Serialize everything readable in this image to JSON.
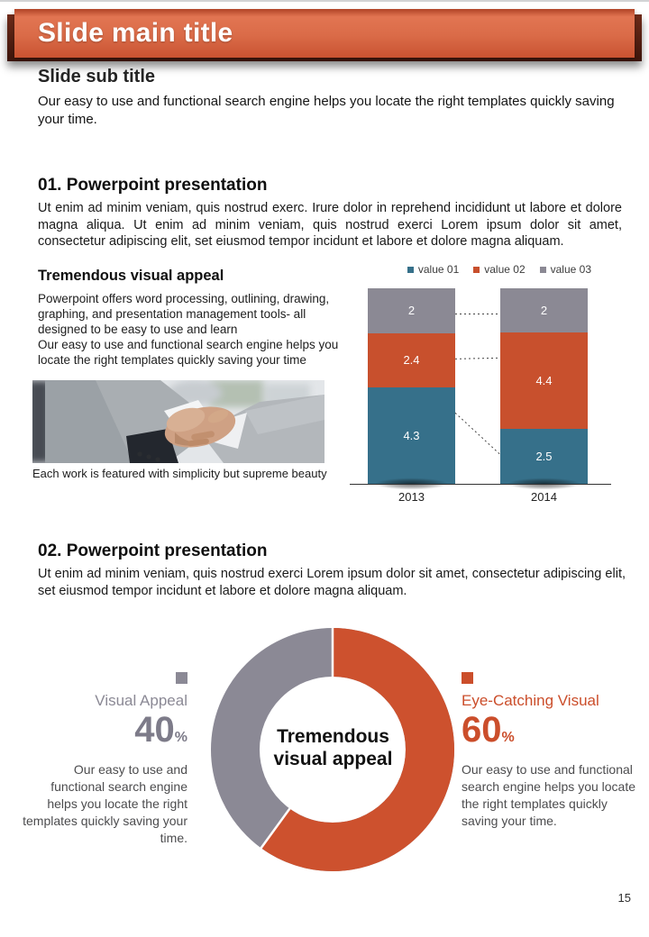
{
  "colors": {
    "banner_orange": "#D4603D",
    "accent_orange": "#CB4E2B",
    "teal": "#36708A",
    "gray": "#8B8995"
  },
  "header": {
    "title": "Slide main title",
    "subtitle": "Slide sub title",
    "intro": "Our easy to use and functional search engine helps you locate the right templates quickly saving your time."
  },
  "section1": {
    "heading": "01. Powerpoint presentation",
    "body": "Ut enim ad minim veniam, quis nostrud exerc. Irure dolor in reprehend incididunt ut labore et dolore magna aliqua. Ut enim ad minim veniam, quis nostrud exerci  Lorem ipsum dolor sit amet, consectetur adipiscing elit, set eiusmod tempor incidunt et labore et dolore magna aliquam.",
    "left_heading": "Tremendous visual appeal",
    "para1": "Powerpoint offers word processing, outlining, drawing, graphing, and presentation management tools- all designed to be easy to use and learn",
    "para2": "Our easy to use and functional search engine helps you locate the right templates quickly saving your time",
    "image_alt": "business-handshake-photo",
    "caption": "Each work is featured with simplicity but supreme beauty"
  },
  "chart_data": [
    {
      "type": "bar",
      "stacked": true,
      "categories": [
        "2013",
        "2014"
      ],
      "series": [
        {
          "name": "value 01",
          "values": [
            4.3,
            2.5
          ],
          "color": "#36708A"
        },
        {
          "name": "value 02",
          "values": [
            2.4,
            4.4
          ],
          "color": "#C8502D"
        },
        {
          "name": "value 03",
          "values": [
            2,
            2
          ],
          "color": "#8B8994"
        }
      ],
      "title": "",
      "xlabel": "",
      "ylabel": "",
      "grid": false,
      "legend_position": "top",
      "value_labels": "inside-white",
      "note": "100%-normalized stacked columns with dashed connector lines between segment boundaries"
    },
    {
      "type": "pie",
      "donut": true,
      "labels": [
        "Eye-Catching Visual",
        "Visual Appeal"
      ],
      "values": [
        60,
        40
      ],
      "colors": [
        "#CD512E",
        "#8B8995"
      ],
      "center_text": "Tremendous visual appeal",
      "start_angle_deg": 0,
      "direction": "clockwise",
      "legend_position": "none"
    }
  ],
  "donut_center": {
    "line1": "Tremendous",
    "line2": "visual appeal"
  },
  "section2": {
    "heading": "02. Powerpoint presentation",
    "body": "Ut enim ad minim veniam, quis nostrud exerci  Lorem ipsum dolor sit amet, consectetur adipiscing elit, set eiusmod tempor incidunt et labore et dolore magna aliquam.",
    "left_stat": {
      "label": "Visual Appeal",
      "value": "40",
      "unit": "%",
      "desc": "Our easy to use and functional search engine helps you locate the right templates quickly saving your time.",
      "color": "#8B8995"
    },
    "right_stat": {
      "label": "Eye-Catching Visual",
      "value": "60",
      "unit": "%",
      "desc": "Our easy to use and functional search engine helps you locate the right templates quickly saving your time.",
      "color": "#CB4E2B"
    }
  },
  "page": {
    "number": "15"
  }
}
